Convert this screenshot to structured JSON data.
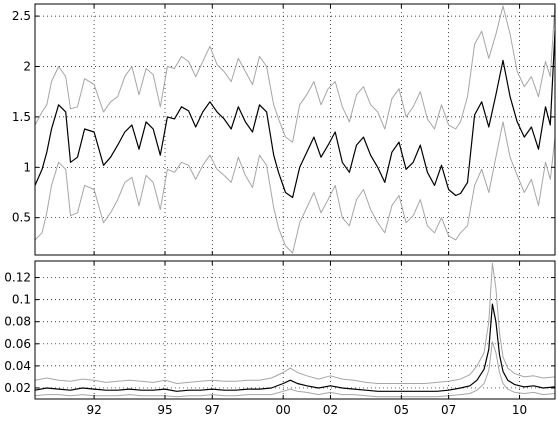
{
  "chart_data": [
    {
      "type": "line",
      "title": "",
      "xlabel": "",
      "ylabel": "",
      "xlim": [
        1989.5,
        2011.5
      ],
      "ylim": [
        0.13,
        2.62
      ],
      "x_ticks": [
        1992,
        1995,
        1997,
        2000,
        2002,
        2005,
        2007,
        2010
      ],
      "x_tick_labels": [
        "92",
        "95",
        "97",
        "00",
        "02",
        "05",
        "07",
        "10"
      ],
      "y_ticks": [
        0.5,
        1,
        1.5,
        2,
        2.5
      ],
      "y_tick_labels": [
        "0.5",
        "1",
        "1.5",
        "2",
        "2.5"
      ],
      "grid": true,
      "series": [
        {
          "role": "estimate",
          "color": "#000000",
          "x": [
            1989.5,
            1989.8,
            1990.0,
            1990.2,
            1990.5,
            1990.8,
            1991.0,
            1991.3,
            1991.6,
            1992.0,
            1992.4,
            1992.7,
            1993.0,
            1993.3,
            1993.6,
            1993.9,
            1994.2,
            1994.5,
            1994.8,
            1995.1,
            1995.4,
            1995.7,
            1996.0,
            1996.3,
            1996.6,
            1996.9,
            1997.2,
            1997.5,
            1997.8,
            1998.1,
            1998.4,
            1998.7,
            1999.0,
            1999.3,
            1999.6,
            1999.8,
            2000.1,
            2000.4,
            2000.7,
            2001.0,
            2001.3,
            2001.6,
            2001.9,
            2002.2,
            2002.5,
            2002.8,
            2003.1,
            2003.4,
            2003.7,
            2004.0,
            2004.3,
            2004.6,
            2004.9,
            2005.2,
            2005.5,
            2005.8,
            2006.1,
            2006.4,
            2006.7,
            2007.0,
            2007.3,
            2007.5,
            2007.8,
            2008.1,
            2008.4,
            2008.7,
            2009.0,
            2009.3,
            2009.6,
            2009.9,
            2010.2,
            2010.5,
            2010.8,
            2011.1,
            2011.3,
            2011.5
          ],
          "y": [
            0.82,
            0.98,
            1.15,
            1.38,
            1.62,
            1.55,
            1.05,
            1.1,
            1.38,
            1.35,
            1.02,
            1.1,
            1.22,
            1.35,
            1.42,
            1.18,
            1.45,
            1.38,
            1.12,
            1.5,
            1.48,
            1.6,
            1.56,
            1.4,
            1.55,
            1.65,
            1.55,
            1.48,
            1.38,
            1.6,
            1.45,
            1.35,
            1.62,
            1.55,
            1.12,
            0.95,
            0.75,
            0.7,
            1.0,
            1.15,
            1.3,
            1.1,
            1.22,
            1.35,
            1.05,
            0.95,
            1.22,
            1.3,
            1.12,
            1.0,
            0.85,
            1.15,
            1.25,
            0.98,
            1.05,
            1.22,
            0.95,
            0.82,
            1.02,
            0.78,
            0.72,
            0.74,
            0.85,
            1.52,
            1.65,
            1.4,
            1.72,
            2.06,
            1.7,
            1.45,
            1.3,
            1.4,
            1.18,
            1.6,
            1.42,
            2.35
          ]
        },
        {
          "role": "upper band",
          "color": "#a6a6a6",
          "x": [
            1989.5,
            1989.8,
            1990.0,
            1990.2,
            1990.5,
            1990.8,
            1991.0,
            1991.3,
            1991.6,
            1992.0,
            1992.4,
            1992.7,
            1993.0,
            1993.3,
            1993.6,
            1993.9,
            1994.2,
            1994.5,
            1994.8,
            1995.1,
            1995.4,
            1995.7,
            1996.0,
            1996.3,
            1996.6,
            1996.9,
            1997.2,
            1997.5,
            1997.8,
            1998.1,
            1998.4,
            1998.7,
            1999.0,
            1999.3,
            1999.6,
            1999.8,
            2000.1,
            2000.4,
            2000.7,
            2001.0,
            2001.3,
            2001.6,
            2001.9,
            2002.2,
            2002.5,
            2002.8,
            2003.1,
            2003.4,
            2003.7,
            2004.0,
            2004.3,
            2004.6,
            2004.9,
            2005.2,
            2005.5,
            2005.8,
            2006.1,
            2006.4,
            2006.7,
            2007.0,
            2007.3,
            2007.5,
            2007.8,
            2008.1,
            2008.4,
            2008.7,
            2009.0,
            2009.3,
            2009.6,
            2009.9,
            2010.2,
            2010.5,
            2010.8,
            2011.1,
            2011.3,
            2011.5
          ],
          "y": [
            1.42,
            1.55,
            1.62,
            1.85,
            2.0,
            1.9,
            1.58,
            1.6,
            1.88,
            1.82,
            1.55,
            1.65,
            1.7,
            1.9,
            2.0,
            1.72,
            1.98,
            1.92,
            1.6,
            2.0,
            1.98,
            2.1,
            2.05,
            1.9,
            2.05,
            2.2,
            2.02,
            1.95,
            1.85,
            2.08,
            1.95,
            1.82,
            2.1,
            2.0,
            1.62,
            1.48,
            1.3,
            1.25,
            1.62,
            1.72,
            1.85,
            1.62,
            1.78,
            1.85,
            1.6,
            1.45,
            1.72,
            1.8,
            1.62,
            1.55,
            1.38,
            1.68,
            1.78,
            1.5,
            1.6,
            1.75,
            1.48,
            1.38,
            1.62,
            1.42,
            1.38,
            1.45,
            1.7,
            2.22,
            2.35,
            2.08,
            2.32,
            2.6,
            2.32,
            1.95,
            1.8,
            1.9,
            1.7,
            2.05,
            1.9,
            2.62
          ]
        },
        {
          "role": "lower band",
          "color": "#a6a6a6",
          "x": [
            1989.5,
            1989.8,
            1990.0,
            1990.2,
            1990.5,
            1990.8,
            1991.0,
            1991.3,
            1991.6,
            1992.0,
            1992.4,
            1992.7,
            1993.0,
            1993.3,
            1993.6,
            1993.9,
            1994.2,
            1994.5,
            1994.8,
            1995.1,
            1995.4,
            1995.7,
            1996.0,
            1996.3,
            1996.6,
            1996.9,
            1997.2,
            1997.5,
            1997.8,
            1998.1,
            1998.4,
            1998.7,
            1999.0,
            1999.3,
            1999.6,
            1999.8,
            2000.1,
            2000.4,
            2000.7,
            2001.0,
            2001.3,
            2001.6,
            2001.9,
            2002.2,
            2002.5,
            2002.8,
            2003.1,
            2003.4,
            2003.7,
            2004.0,
            2004.3,
            2004.6,
            2004.9,
            2005.2,
            2005.5,
            2005.8,
            2006.1,
            2006.4,
            2006.7,
            2007.0,
            2007.3,
            2007.5,
            2007.8,
            2008.1,
            2008.4,
            2008.7,
            2009.0,
            2009.3,
            2009.6,
            2009.9,
            2010.2,
            2010.5,
            2010.8,
            2011.1,
            2011.3,
            2011.5
          ],
          "y": [
            0.28,
            0.35,
            0.55,
            0.82,
            1.05,
            0.98,
            0.52,
            0.55,
            0.82,
            0.78,
            0.45,
            0.55,
            0.68,
            0.85,
            0.9,
            0.62,
            0.92,
            0.85,
            0.58,
            0.98,
            0.95,
            1.05,
            1.02,
            0.88,
            1.02,
            1.12,
            0.98,
            0.92,
            0.85,
            1.1,
            0.92,
            0.8,
            1.12,
            1.02,
            0.6,
            0.4,
            0.22,
            0.15,
            0.45,
            0.6,
            0.75,
            0.55,
            0.68,
            0.82,
            0.5,
            0.42,
            0.68,
            0.78,
            0.58,
            0.45,
            0.35,
            0.62,
            0.72,
            0.45,
            0.52,
            0.68,
            0.42,
            0.35,
            0.5,
            0.32,
            0.28,
            0.35,
            0.42,
            0.82,
            0.98,
            0.75,
            1.1,
            1.45,
            1.1,
            0.92,
            0.75,
            0.88,
            0.62,
            1.05,
            0.88,
            1.3
          ]
        }
      ]
    },
    {
      "type": "line",
      "title": "",
      "xlabel": "",
      "ylabel": "",
      "xlim": [
        1989.5,
        2011.5
      ],
      "ylim": [
        0.01,
        0.135
      ],
      "x_ticks": [
        1992,
        1995,
        1997,
        2000,
        2002,
        2005,
        2007,
        2010
      ],
      "x_tick_labels": [
        "92",
        "95",
        "97",
        "00",
        "02",
        "05",
        "07",
        "10"
      ],
      "y_ticks": [
        0.02,
        0.04,
        0.06,
        0.08,
        0.1,
        0.12
      ],
      "y_tick_labels": [
        "0.02",
        "0.04",
        "0.06",
        "0.08",
        "0.1",
        "0.12"
      ],
      "grid": true,
      "series": [
        {
          "role": "estimate",
          "color": "#000000",
          "x": [
            1989.5,
            1990.0,
            1990.5,
            1991.0,
            1991.5,
            1992.0,
            1992.5,
            1993.0,
            1993.5,
            1994.0,
            1994.5,
            1995.0,
            1995.5,
            1996.0,
            1996.5,
            1997.0,
            1997.5,
            1998.0,
            1998.5,
            1999.0,
            1999.5,
            2000.0,
            2000.3,
            2000.6,
            2001.0,
            2001.5,
            2002.0,
            2002.5,
            2003.0,
            2003.5,
            2004.0,
            2004.5,
            2005.0,
            2005.5,
            2006.0,
            2006.5,
            2007.0,
            2007.5,
            2007.9,
            2008.2,
            2008.5,
            2008.7,
            2008.85,
            2009.0,
            2009.15,
            2009.3,
            2009.5,
            2009.8,
            2010.2,
            2010.6,
            2011.0,
            2011.5
          ],
          "y": [
            0.018,
            0.02,
            0.019,
            0.018,
            0.02,
            0.019,
            0.018,
            0.018,
            0.019,
            0.018,
            0.018,
            0.019,
            0.017,
            0.018,
            0.018,
            0.019,
            0.018,
            0.018,
            0.019,
            0.019,
            0.02,
            0.024,
            0.027,
            0.024,
            0.022,
            0.02,
            0.022,
            0.02,
            0.019,
            0.018,
            0.017,
            0.017,
            0.017,
            0.017,
            0.017,
            0.017,
            0.018,
            0.02,
            0.022,
            0.027,
            0.037,
            0.055,
            0.096,
            0.08,
            0.05,
            0.035,
            0.027,
            0.023,
            0.021,
            0.022,
            0.02,
            0.021
          ]
        },
        {
          "role": "upper band",
          "color": "#a6a6a6",
          "x": [
            1989.5,
            1990.0,
            1990.5,
            1991.0,
            1991.5,
            1992.0,
            1992.5,
            1993.0,
            1993.5,
            1994.0,
            1994.5,
            1995.0,
            1995.5,
            1996.0,
            1996.5,
            1997.0,
            1997.5,
            1998.0,
            1998.5,
            1999.0,
            1999.5,
            2000.0,
            2000.3,
            2000.6,
            2001.0,
            2001.5,
            2002.0,
            2002.5,
            2003.0,
            2003.5,
            2004.0,
            2004.5,
            2005.0,
            2005.5,
            2006.0,
            2006.5,
            2007.0,
            2007.5,
            2007.9,
            2008.2,
            2008.5,
            2008.7,
            2008.85,
            2009.0,
            2009.15,
            2009.3,
            2009.5,
            2009.8,
            2010.2,
            2010.6,
            2011.0,
            2011.5
          ],
          "y": [
            0.027,
            0.029,
            0.027,
            0.026,
            0.028,
            0.027,
            0.025,
            0.026,
            0.027,
            0.026,
            0.025,
            0.027,
            0.024,
            0.025,
            0.026,
            0.027,
            0.026,
            0.026,
            0.027,
            0.027,
            0.029,
            0.034,
            0.038,
            0.034,
            0.031,
            0.028,
            0.031,
            0.028,
            0.027,
            0.025,
            0.024,
            0.024,
            0.024,
            0.024,
            0.024,
            0.025,
            0.026,
            0.028,
            0.032,
            0.04,
            0.052,
            0.08,
            0.133,
            0.11,
            0.07,
            0.048,
            0.038,
            0.033,
            0.03,
            0.031,
            0.029,
            0.03
          ]
        },
        {
          "role": "lower band",
          "color": "#a6a6a6",
          "x": [
            1989.5,
            1990.0,
            1990.5,
            1991.0,
            1991.5,
            1992.0,
            1992.5,
            1993.0,
            1993.5,
            1994.0,
            1994.5,
            1995.0,
            1995.5,
            1996.0,
            1996.5,
            1997.0,
            1997.5,
            1998.0,
            1998.5,
            1999.0,
            1999.5,
            2000.0,
            2000.3,
            2000.6,
            2001.0,
            2001.5,
            2002.0,
            2002.5,
            2003.0,
            2003.5,
            2004.0,
            2004.5,
            2005.0,
            2005.5,
            2006.0,
            2006.5,
            2007.0,
            2007.5,
            2007.9,
            2008.2,
            2008.5,
            2008.7,
            2008.85,
            2009.0,
            2009.15,
            2009.3,
            2009.5,
            2009.8,
            2010.2,
            2010.6,
            2011.0,
            2011.5
          ],
          "y": [
            0.013,
            0.014,
            0.014,
            0.013,
            0.014,
            0.013,
            0.013,
            0.013,
            0.014,
            0.013,
            0.013,
            0.013,
            0.012,
            0.013,
            0.013,
            0.014,
            0.013,
            0.013,
            0.014,
            0.014,
            0.014,
            0.017,
            0.019,
            0.017,
            0.016,
            0.014,
            0.016,
            0.014,
            0.014,
            0.013,
            0.012,
            0.012,
            0.012,
            0.012,
            0.012,
            0.012,
            0.013,
            0.014,
            0.015,
            0.018,
            0.024,
            0.036,
            0.062,
            0.052,
            0.034,
            0.024,
            0.019,
            0.016,
            0.015,
            0.016,
            0.014,
            0.015
          ]
        }
      ]
    }
  ]
}
